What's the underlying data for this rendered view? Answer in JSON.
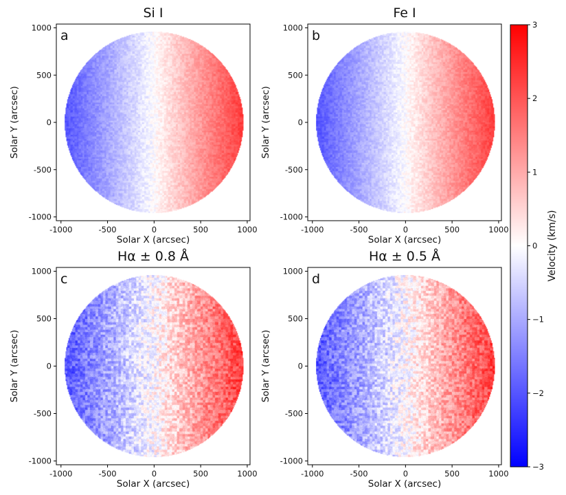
{
  "chart_data": {
    "type": "heatmap",
    "panels": [
      {
        "letter": "a",
        "title": "Si I",
        "noise": "low"
      },
      {
        "letter": "b",
        "title": "Fe I",
        "noise": "low"
      },
      {
        "letter": "c",
        "title": "Hα ± 0.8 Å",
        "noise": "high"
      },
      {
        "letter": "d",
        "title": "Hα ± 0.5 Å",
        "noise": "high"
      }
    ],
    "xlabel": "Solar X (arcsec)",
    "ylabel": "Solar Y (arcsec)",
    "xlim": [
      -1050,
      1030
    ],
    "ylim": [
      -1040,
      1040
    ],
    "x_ticks": [
      -1000,
      -500,
      0,
      500,
      1000
    ],
    "y_ticks": [
      -1000,
      -500,
      0,
      500,
      1000
    ],
    "x_tick_labels": [
      "-1000",
      "-500",
      "0",
      "500",
      "1000"
    ],
    "y_tick_labels": [
      "-1000",
      "-500",
      "0",
      "500",
      "1000"
    ],
    "disk_radius_arcsec": 960,
    "velocity_range": [
      -2,
      2.3
    ],
    "colorbar": {
      "label": "Velocity (km/s)",
      "range": [
        -3,
        3
      ],
      "ticks": [
        -3,
        -2,
        -1,
        0,
        1,
        2,
        3
      ],
      "tick_labels": [
        "−3",
        "−2",
        "−1",
        "0",
        "1",
        "2",
        "3"
      ],
      "colormap": "bwr",
      "colors": [
        "#0000ff",
        "#ffffff",
        "#ff0000"
      ]
    }
  }
}
